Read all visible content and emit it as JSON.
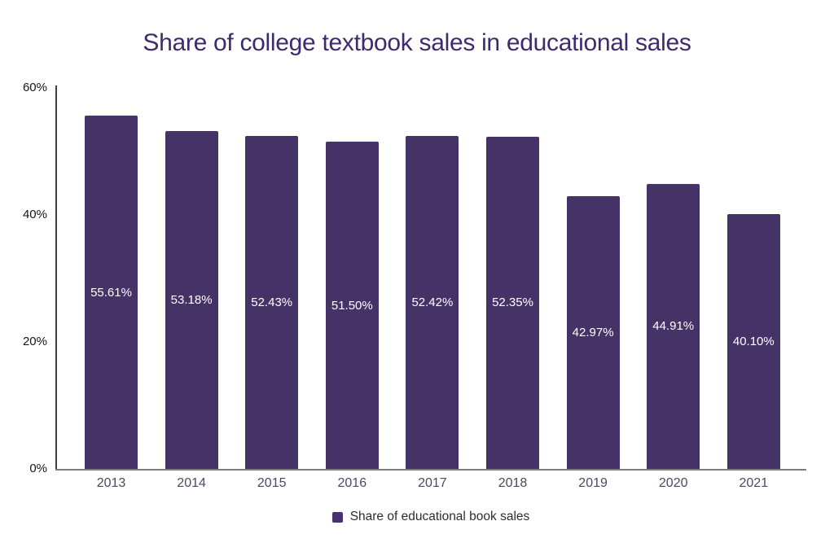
{
  "title": "Share of college textbook sales in educational sales",
  "legend": {
    "label": "Share of educational book sales"
  },
  "colors": {
    "bar": "#453267",
    "title": "#3e2b6e",
    "bar_value_label": "#ffffff",
    "year_label": "#4e4666",
    "ytick_label": "#141414",
    "legend_text": "#2d2d2d",
    "legend_marker": "#473170",
    "y_axis_line": "#3f3f3f",
    "x_axis_line": "#7d7d7d",
    "background": "#ffffff"
  },
  "chart_data": {
    "type": "bar",
    "title": "Share of college textbook sales in educational sales",
    "categories": [
      "2013",
      "2014",
      "2015",
      "2016",
      "2017",
      "2018",
      "2019",
      "2020",
      "2021"
    ],
    "series": [
      {
        "name": "Share of educational book sales",
        "values": [
          55.61,
          53.18,
          52.43,
          51.5,
          52.42,
          52.35,
          42.97,
          44.91,
          40.1
        ],
        "value_labels": [
          "55.61%",
          "53.18%",
          "52.43%",
          "51.50%",
          "52.42%",
          "52.35%",
          "42.97%",
          "44.91%",
          "40.10%"
        ]
      }
    ],
    "xlabel": "",
    "ylabel": "",
    "ylim": [
      0,
      60
    ],
    "yticks": [
      {
        "value": 60,
        "label": "60%"
      },
      {
        "value": 40,
        "label": "40%"
      },
      {
        "value": 20,
        "label": "20%"
      },
      {
        "value": 0,
        "label": "0%"
      }
    ],
    "grid": false,
    "value_label_position": "inside-center",
    "legend_position": "bottom-center"
  }
}
